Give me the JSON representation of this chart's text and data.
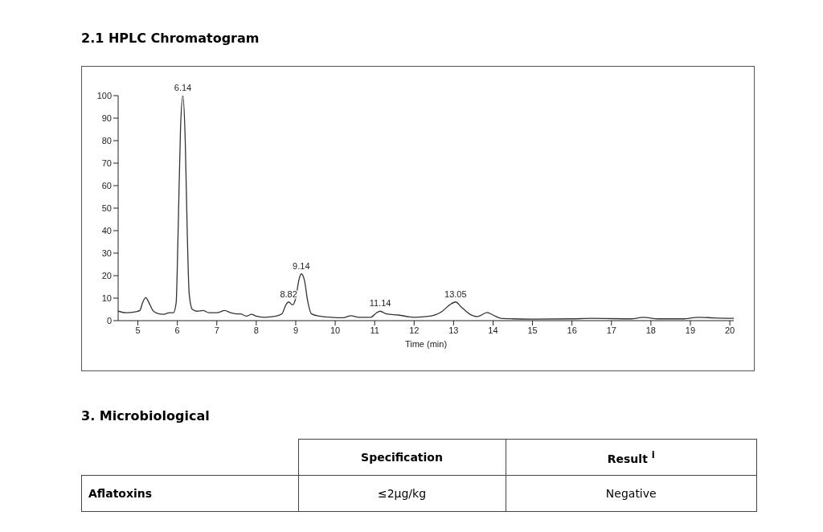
{
  "chart_data": [
    {
      "type": "line",
      "title": "2.1 HPLC Chromatogram",
      "xlabel": "Time (min)",
      "x": [
        4.5,
        4.7,
        4.95,
        5.05,
        5.12,
        5.2,
        5.28,
        5.38,
        5.5,
        5.65,
        5.8,
        5.9,
        5.97,
        6.02,
        6.08,
        6.14,
        6.2,
        6.25,
        6.3,
        6.38,
        6.5,
        6.65,
        6.8,
        7.0,
        7.2,
        7.35,
        7.5,
        7.6,
        7.75,
        7.88,
        8.0,
        8.2,
        8.5,
        8.65,
        8.75,
        8.82,
        8.92,
        9.0,
        9.08,
        9.14,
        9.22,
        9.3,
        9.4,
        9.6,
        9.9,
        10.2,
        10.4,
        10.6,
        10.9,
        11.05,
        11.14,
        11.3,
        11.6,
        12.0,
        12.4,
        12.7,
        12.9,
        13.05,
        13.2,
        13.4,
        13.6,
        13.85,
        14.0,
        14.2,
        14.5,
        15.0,
        16.0,
        16.5,
        17.5,
        17.8,
        18.2,
        18.8,
        19.2,
        19.6,
        20.1
      ],
      "series": [
        {
          "color": "#333333",
          "values": [
            4.2,
            3.5,
            4,
            4.5,
            8,
            10.2,
            8,
            4.5,
            3.2,
            2.8,
            3.5,
            3.5,
            8,
            40,
            85,
            100,
            80,
            40,
            12,
            5,
            4.2,
            4.5,
            3.5,
            3.5,
            4.5,
            3.5,
            3,
            3,
            2,
            2.8,
            2,
            1.5,
            2,
            3,
            7,
            8.3,
            7,
            10,
            18,
            20.8,
            18,
            9,
            3,
            2,
            1.5,
            1.3,
            2.2,
            1.5,
            1.5,
            3.5,
            4.2,
            3,
            2.5,
            1.5,
            2,
            4,
            7,
            8.3,
            6,
            3,
            1.8,
            3.6,
            2.5,
            1,
            0.8,
            0.7,
            0.8,
            1,
            0.8,
            1.5,
            0.8,
            0.8,
            1.5,
            1.2,
            1
          ]
        }
      ],
      "xlim": [
        4.5,
        20.1
      ],
      "xticks": [
        5,
        6,
        7,
        8,
        9,
        10,
        11,
        12,
        13,
        14,
        15,
        16,
        17,
        18,
        19,
        20
      ],
      "ylim": [
        0,
        100
      ],
      "yticks": [
        0,
        10,
        20,
        30,
        40,
        50,
        60,
        70,
        80,
        90,
        100
      ],
      "grid": false,
      "legend": false,
      "marker": "none",
      "line_style": "solid",
      "annotations": [
        {
          "text": "6.14",
          "x": 6.14,
          "y": 100
        },
        {
          "text": "8.82",
          "x": 8.82,
          "y": 8.3
        },
        {
          "text": "9.14",
          "x": 9.14,
          "y": 20.8
        },
        {
          "text": "11.14",
          "x": 11.14,
          "y": 4.2
        },
        {
          "text": "13.05",
          "x": 13.05,
          "y": 8.3
        }
      ]
    },
    {
      "type": "other",
      "title": "3. Microbiological",
      "annotations": [
        "Specification",
        "Result $^{i}$",
        "Aflatoxins",
        "≤2µg/kg",
        "Negative"
      ]
    }
  ]
}
